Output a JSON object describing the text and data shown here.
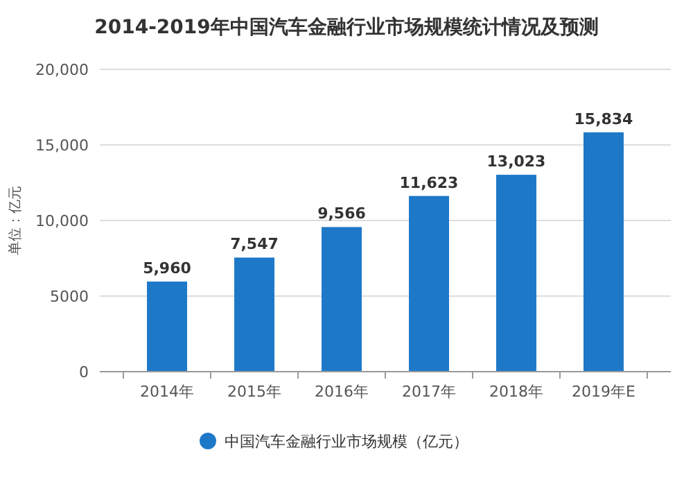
{
  "chart_data": {
    "type": "bar",
    "title": "2014-2019年中国汽车金融行业市场规模统计情况及预测",
    "ylabel": "单位：亿元",
    "categories": [
      "2014年",
      "2015年",
      "2016年",
      "2017年",
      "2018年",
      "2019年E"
    ],
    "series": [
      {
        "name": "中国汽车金融行业市场规模（亿元）",
        "color": "#1e78c8",
        "values": [
          5960,
          7547,
          9566,
          11623,
          13023,
          15834
        ]
      }
    ],
    "value_labels": [
      "5,960",
      "7,547",
      "9,566",
      "11,623",
      "13,023",
      "15,834"
    ],
    "ylim": [
      0,
      20000
    ],
    "yticks": [
      {
        "value": 0,
        "label": "0"
      },
      {
        "value": 5000,
        "label": "5000"
      },
      {
        "value": 10000,
        "label": "10,000"
      },
      {
        "value": 15000,
        "label": "15,000"
      },
      {
        "value": 20000,
        "label": "20,000"
      }
    ],
    "grid": "y",
    "legend": "bottom"
  }
}
